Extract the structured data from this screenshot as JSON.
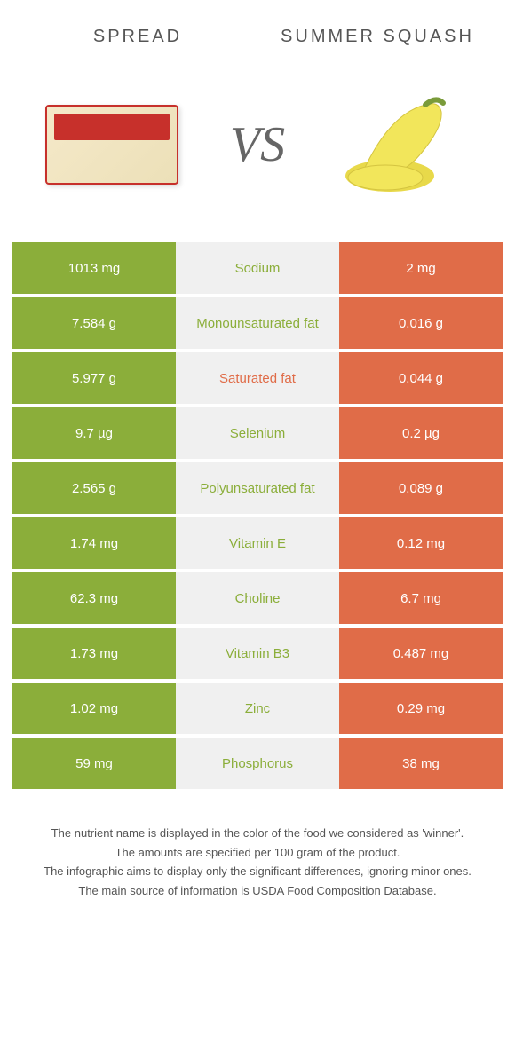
{
  "header": {
    "left": "SPREAD",
    "right": "SUMMER SQUASH",
    "vs": "VS"
  },
  "colors": {
    "left_bg": "#8bae3a",
    "right_bg": "#e06c48",
    "mid_bg": "#f0f0f0",
    "cell_text": "#ffffff"
  },
  "rows": [
    {
      "left": "1013 mg",
      "name": "Sodium",
      "right": "2 mg",
      "winner": "left"
    },
    {
      "left": "7.584 g",
      "name": "Monounsaturated fat",
      "right": "0.016 g",
      "winner": "left"
    },
    {
      "left": "5.977 g",
      "name": "Saturated fat",
      "right": "0.044 g",
      "winner": "right"
    },
    {
      "left": "9.7 µg",
      "name": "Selenium",
      "right": "0.2 µg",
      "winner": "left"
    },
    {
      "left": "2.565 g",
      "name": "Polyunsaturated fat",
      "right": "0.089 g",
      "winner": "left"
    },
    {
      "left": "1.74 mg",
      "name": "Vitamin E",
      "right": "0.12 mg",
      "winner": "left"
    },
    {
      "left": "62.3 mg",
      "name": "Choline",
      "right": "6.7 mg",
      "winner": "left"
    },
    {
      "left": "1.73 mg",
      "name": "Vitamin B3",
      "right": "0.487 mg",
      "winner": "left"
    },
    {
      "left": "1.02 mg",
      "name": "Zinc",
      "right": "0.29 mg",
      "winner": "left"
    },
    {
      "left": "59 mg",
      "name": "Phosphorus",
      "right": "38 mg",
      "winner": "left"
    }
  ],
  "footer": {
    "line1": "The nutrient name is displayed in the color of the food we considered as 'winner'.",
    "line2": "The amounts are specified per 100 gram of the product.",
    "line3": "The infographic aims to display only the significant differences, ignoring minor ones.",
    "line4": "The main source of information is USDA Food Composition Database."
  }
}
